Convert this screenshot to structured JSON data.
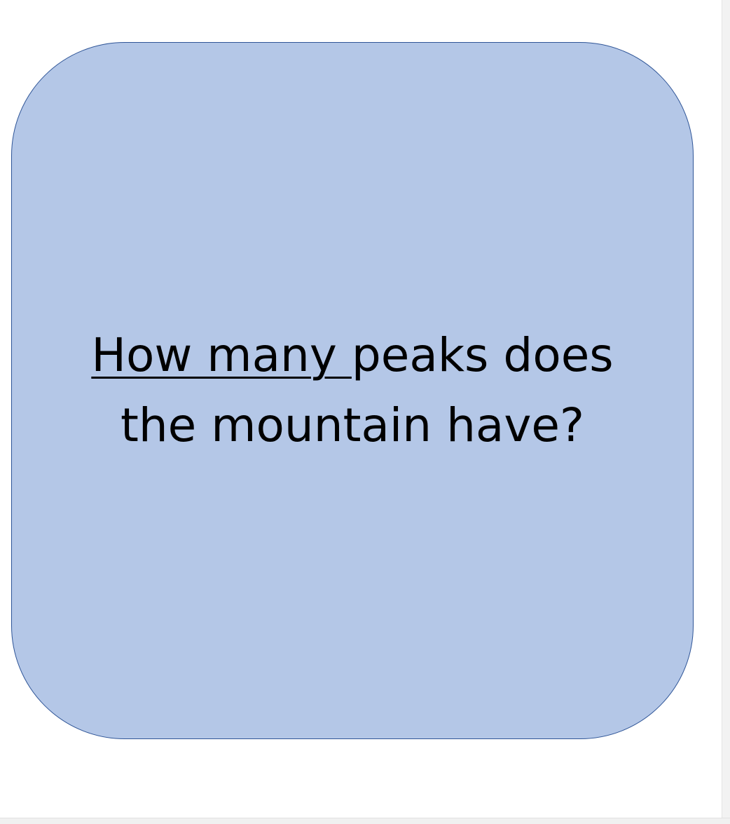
{
  "card": {
    "fill_color": "#b4c7e7",
    "border_color": "#2f5597",
    "question": {
      "underlined_part": "How many ",
      "rest_line1": "peaks does",
      "line2": "the mountain have?"
    }
  }
}
